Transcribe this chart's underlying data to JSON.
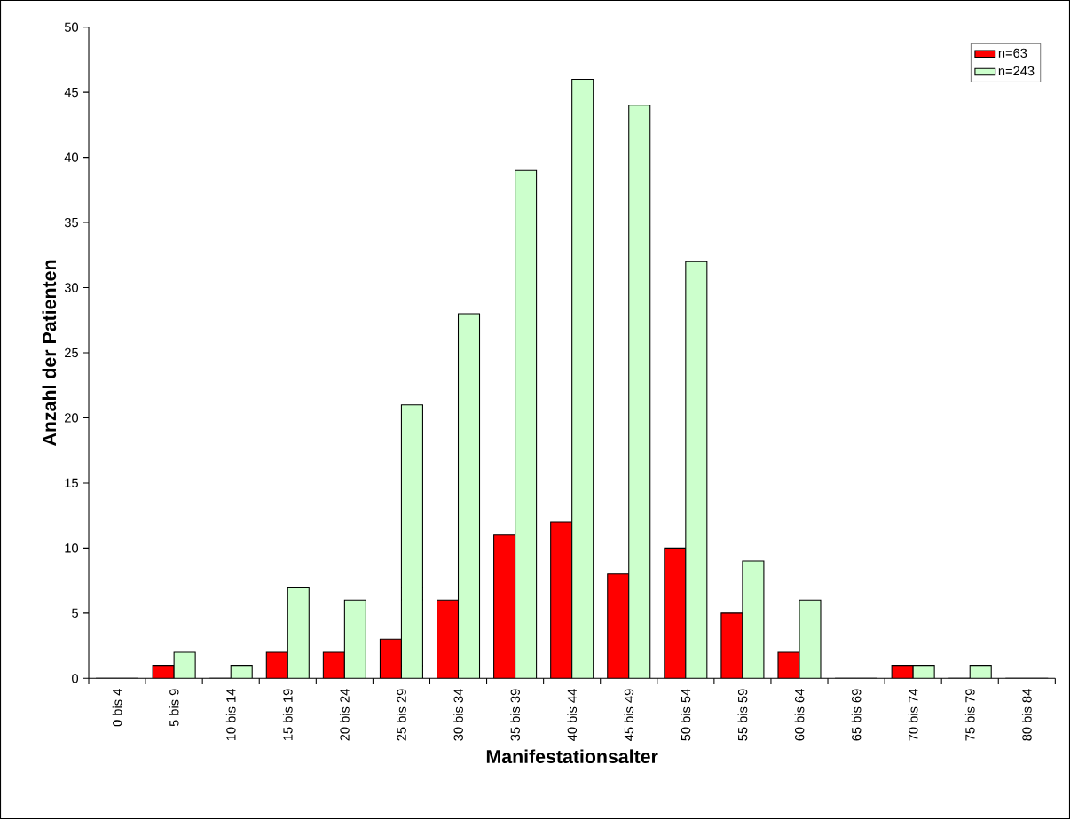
{
  "chart_data": {
    "type": "bar",
    "xlabel": "Manifestationsalter",
    "ylabel": "Anzahl der Patienten",
    "categories": [
      "0 bis 4",
      "5 bis 9",
      "10 bis 14",
      "15 bis 19",
      "20 bis 24",
      "25 bis 29",
      "30 bis 34",
      "35 bis 39",
      "40 bis 44",
      "45 bis 49",
      "50 bis 54",
      "55 bis 59",
      "60 bis 64",
      "65 bis 69",
      "70 bis 74",
      "75 bis 79",
      "80 bis 84"
    ],
    "series": [
      {
        "name": "n=63",
        "color": "#ff0000",
        "values": [
          0,
          1,
          0,
          2,
          2,
          3,
          6,
          11,
          12,
          8,
          10,
          5,
          2,
          0,
          1,
          0,
          0
        ]
      },
      {
        "name": "n=243",
        "color": "#ccffcc",
        "values": [
          0,
          2,
          1,
          7,
          6,
          21,
          28,
          39,
          46,
          44,
          32,
          9,
          6,
          0,
          1,
          1,
          0
        ]
      }
    ],
    "ylim": [
      0,
      50
    ],
    "yticks": [
      0,
      5,
      10,
      15,
      20,
      25,
      30,
      35,
      40,
      45,
      50
    ],
    "legend": "top right"
  }
}
